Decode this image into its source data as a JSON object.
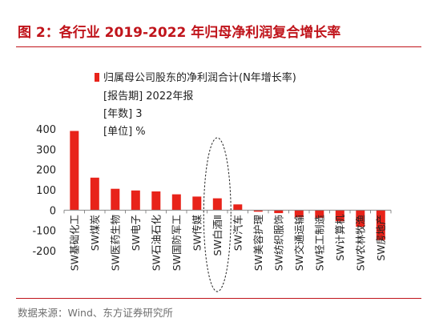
{
  "header": {
    "title": "图 2：各行业 2019-2022 年归母净利润复合增长率"
  },
  "footer": {
    "source": "数据来源：Wind、东方证券研究所"
  },
  "chart_data": {
    "type": "bar",
    "legend": {
      "series_name": "归属母公司股东的净利润合计(N年增长率)",
      "notes": [
        "[报告期] 2022年报",
        "[年数] 3",
        "[单位] %"
      ],
      "placement": "top"
    },
    "categories": [
      "SW基础化工",
      "SW煤炭",
      "SW医药生物",
      "SW电子",
      "SW石油石化",
      "SW国防军工",
      "SW传媒",
      "SW白酒Ⅱ",
      "SW汽车",
      "SW美容护理",
      "SW纺织服饰",
      "SW交通运输",
      "SW轻工制造",
      "SW计算机",
      "SW农林牧渔",
      "SW房地产"
    ],
    "series": [
      {
        "name": "归属母公司股东的净利润合计(N年增长率)",
        "values": [
          390,
          160,
          105,
          97,
          92,
          78,
          67,
          58,
          28,
          -8,
          -15,
          -35,
          -38,
          -55,
          -82,
          -148
        ]
      }
    ],
    "ylim": [
      -200,
      400
    ],
    "yticks": [
      400,
      300,
      200,
      100,
      0,
      -100,
      -200
    ],
    "highlight_category": "SW白酒Ⅱ",
    "colors": {
      "bar": "#e8231a",
      "accent": "#c0141b"
    },
    "grid": false
  }
}
